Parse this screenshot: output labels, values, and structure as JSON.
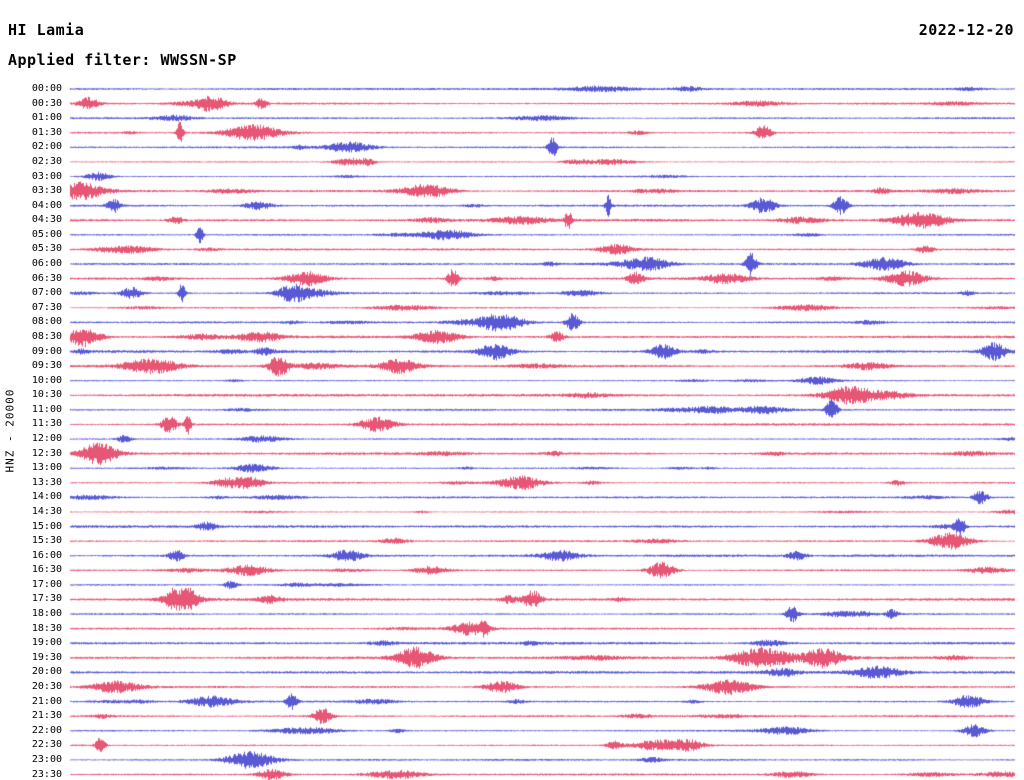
{
  "header": {
    "station": "HI Lamia",
    "date": "2022-12-20",
    "filter_label": "Applied filter: WWSSN-SP"
  },
  "y_axis_label": "HNZ - 20000",
  "colors": {
    "trace_blue": "#2121c8",
    "trace_red": "#df1d46",
    "text": "#000000",
    "background": "#ffffff"
  },
  "chart_data": {
    "type": "line",
    "subtype": "helicorder-seismogram",
    "title": "HI Lamia",
    "date": "2022-12-20",
    "filter": "WWSSN-SP",
    "channel_scale_label": "HNZ - 20000",
    "row_interval_minutes": 30,
    "x_range_minutes": [
      0,
      30
    ],
    "legend_position": "none",
    "grid": false,
    "rows": [
      {
        "time": "00:00",
        "color": "blue"
      },
      {
        "time": "00:30",
        "color": "red"
      },
      {
        "time": "01:00",
        "color": "blue"
      },
      {
        "time": "01:30",
        "color": "red"
      },
      {
        "time": "02:00",
        "color": "blue"
      },
      {
        "time": "02:30",
        "color": "red"
      },
      {
        "time": "03:00",
        "color": "blue"
      },
      {
        "time": "03:30",
        "color": "red"
      },
      {
        "time": "04:00",
        "color": "blue"
      },
      {
        "time": "04:30",
        "color": "red"
      },
      {
        "time": "05:00",
        "color": "blue"
      },
      {
        "time": "05:30",
        "color": "red"
      },
      {
        "time": "06:00",
        "color": "blue"
      },
      {
        "time": "06:30",
        "color": "red"
      },
      {
        "time": "07:00",
        "color": "blue"
      },
      {
        "time": "07:30",
        "color": "red"
      },
      {
        "time": "08:00",
        "color": "blue"
      },
      {
        "time": "08:30",
        "color": "red"
      },
      {
        "time": "09:00",
        "color": "blue"
      },
      {
        "time": "09:30",
        "color": "red"
      },
      {
        "time": "10:00",
        "color": "blue"
      },
      {
        "time": "10:30",
        "color": "red"
      },
      {
        "time": "11:00",
        "color": "blue"
      },
      {
        "time": "11:30",
        "color": "red"
      },
      {
        "time": "12:00",
        "color": "blue"
      },
      {
        "time": "12:30",
        "color": "red"
      },
      {
        "time": "13:00",
        "color": "blue"
      },
      {
        "time": "13:30",
        "color": "red"
      },
      {
        "time": "14:00",
        "color": "blue"
      },
      {
        "time": "14:30",
        "color": "red"
      },
      {
        "time": "15:00",
        "color": "blue"
      },
      {
        "time": "15:30",
        "color": "red"
      },
      {
        "time": "16:00",
        "color": "blue"
      },
      {
        "time": "16:30",
        "color": "red"
      },
      {
        "time": "17:00",
        "color": "blue"
      },
      {
        "time": "17:30",
        "color": "red"
      },
      {
        "time": "18:00",
        "color": "blue"
      },
      {
        "time": "18:30",
        "color": "red"
      },
      {
        "time": "19:00",
        "color": "blue"
      },
      {
        "time": "19:30",
        "color": "red"
      },
      {
        "time": "20:00",
        "color": "blue"
      },
      {
        "time": "20:30",
        "color": "red"
      },
      {
        "time": "21:00",
        "color": "blue"
      },
      {
        "time": "21:30",
        "color": "red"
      },
      {
        "time": "22:00",
        "color": "blue"
      },
      {
        "time": "22:30",
        "color": "red"
      },
      {
        "time": "23:00",
        "color": "blue"
      },
      {
        "time": "23:30",
        "color": "red"
      }
    ]
  }
}
